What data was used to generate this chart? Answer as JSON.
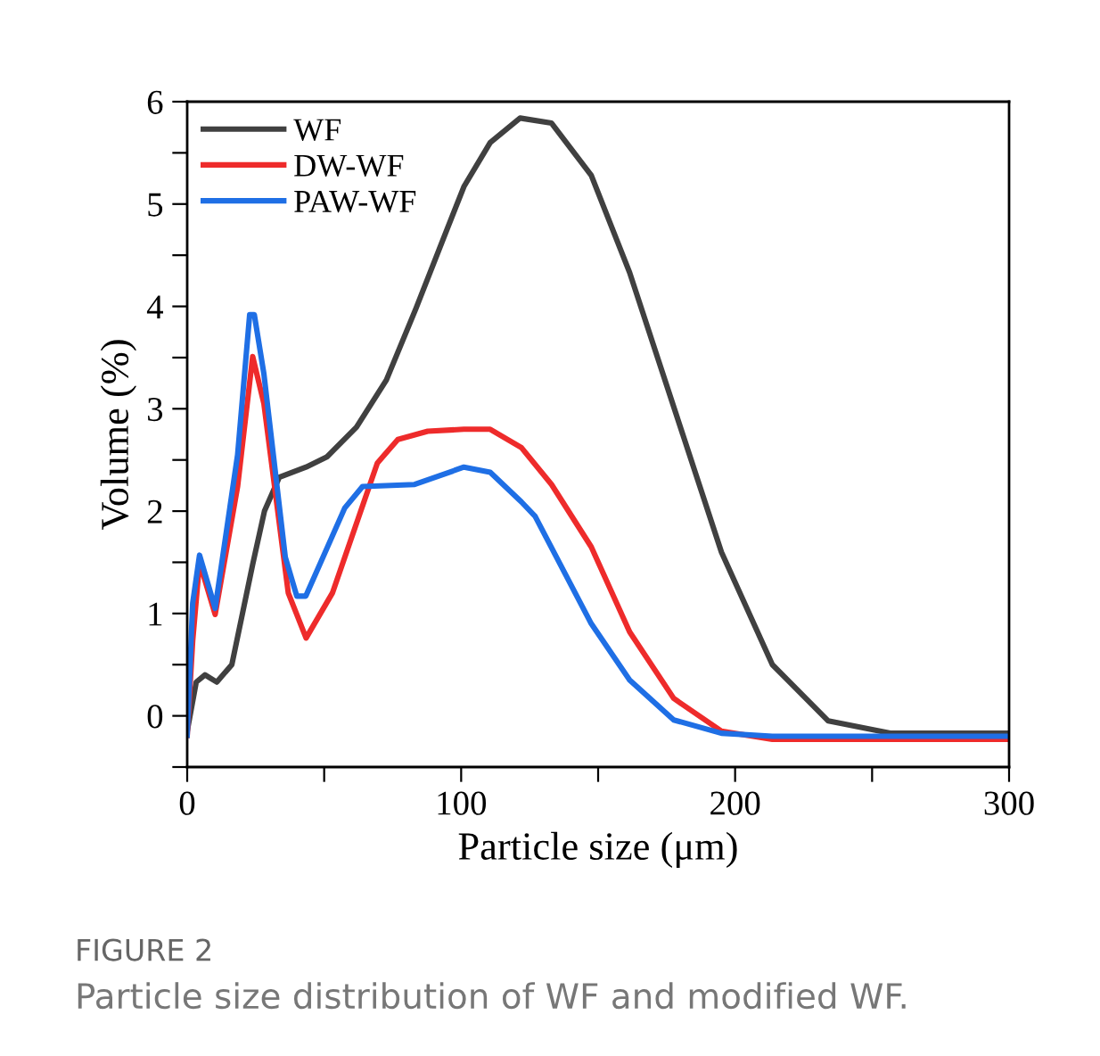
{
  "chart_data": {
    "type": "line",
    "xlabel": "Particle size (μm)",
    "ylabel": "Volume (%)",
    "xlim": [
      0,
      300
    ],
    "ylim": [
      -0.5,
      6
    ],
    "xticks": [
      0,
      {
        "value": 50,
        "label": null
      },
      100,
      {
        "value": 150,
        "label": null
      },
      200,
      {
        "value": 250,
        "label": null
      },
      300
    ],
    "yticks": [
      {
        "value": -0.5,
        "label": null
      },
      0,
      {
        "value": 0.5,
        "label": null
      },
      1,
      {
        "value": 1.5,
        "label": null
      },
      2,
      {
        "value": 2.5,
        "label": null
      },
      3,
      {
        "value": 3.5,
        "label": null
      },
      4,
      {
        "value": 4.5,
        "label": null
      },
      5,
      {
        "value": 5.5,
        "label": null
      },
      6
    ],
    "grid": false,
    "legend": "top left",
    "marker": "none",
    "line_style": "solid",
    "annotations": [
      "FIGURE 2",
      "Particle size distribution of WF and modified WF."
    ],
    "series": [
      {
        "name": "WF",
        "color": "#404040",
        "x": [
          0,
          3.3,
          6.5,
          10.8,
          16.3,
          23.9,
          28.2,
          33.6,
          43.4,
          51,
          61.8,
          72.7,
          83.5,
          92,
          101,
          110.6,
          121.5,
          133,
          147.5,
          161.5,
          195,
          213.6,
          234,
          257,
          300
        ],
        "values": [
          -0.15,
          0.33,
          0.4,
          0.33,
          0.5,
          1.48,
          2.0,
          2.33,
          2.43,
          2.53,
          2.82,
          3.28,
          3.98,
          4.56,
          5.17,
          5.6,
          5.84,
          5.79,
          5.28,
          4.33,
          1.6,
          0.5,
          -0.05,
          -0.17,
          -0.17
        ]
      },
      {
        "name": "DW-WF",
        "color": "#ee2b2b",
        "x": [
          0,
          2,
          4.5,
          10.2,
          18.4,
          23.9,
          28,
          36.9,
          43.4,
          53,
          69.4,
          76.9,
          87.8,
          101,
          110.6,
          122,
          133,
          147.5,
          161.5,
          177.6,
          195,
          213.6,
          300
        ],
        "values": [
          -0.19,
          0.73,
          1.5,
          0.99,
          2.24,
          3.51,
          3.05,
          1.2,
          0.76,
          1.2,
          2.47,
          2.7,
          2.78,
          2.8,
          2.8,
          2.62,
          2.26,
          1.65,
          0.82,
          0.17,
          -0.15,
          -0.23,
          -0.23
        ]
      },
      {
        "name": "PAW-WF",
        "color": "#1f6fe5",
        "x": [
          0,
          2,
          4.5,
          10.2,
          18.4,
          22.8,
          24.5,
          28,
          35.8,
          40,
          43.3,
          57.5,
          64,
          83,
          101,
          110.6,
          122,
          127,
          147.5,
          161.5,
          177.6,
          195,
          213.6,
          300
        ],
        "values": [
          -0.19,
          1.1,
          1.57,
          1.05,
          2.55,
          3.92,
          3.92,
          3.34,
          1.55,
          1.17,
          1.17,
          2.03,
          2.24,
          2.26,
          2.43,
          2.38,
          2.09,
          1.95,
          0.9,
          0.35,
          -0.04,
          -0.17,
          -0.2,
          -0.2
        ]
      }
    ]
  }
}
